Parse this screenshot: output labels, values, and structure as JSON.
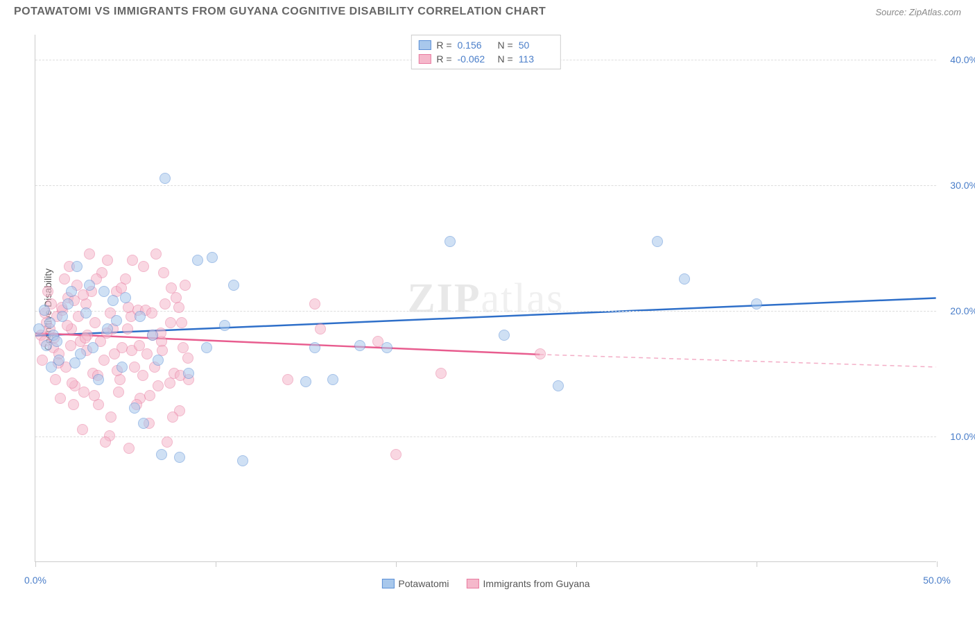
{
  "header": {
    "title": "POTAWATOMI VS IMMIGRANTS FROM GUYANA COGNITIVE DISABILITY CORRELATION CHART",
    "source_prefix": "Source: ",
    "source": "ZipAtlas.com"
  },
  "chart": {
    "type": "scatter",
    "watermark": "ZIPatlas",
    "y_axis_label": "Cognitive Disability",
    "xlim": [
      0,
      50
    ],
    "ylim": [
      0,
      42
    ],
    "x_ticks": [
      0,
      10,
      20,
      30,
      40,
      50
    ],
    "x_tick_labels": {
      "0": "0.0%",
      "50": "50.0%"
    },
    "x_tick_label_color": "#4a7ec9",
    "y_gridlines": [
      10,
      20,
      30,
      40
    ],
    "y_tick_labels": {
      "10": "10.0%",
      "20": "20.0%",
      "30": "30.0%",
      "40": "40.0%"
    },
    "y_tick_label_color": "#4a7ec9",
    "grid_color": "#dddddd",
    "background_color": "#ffffff",
    "point_radius": 8,
    "point_opacity": 0.55,
    "series": [
      {
        "name": "Potawatomi",
        "fill_color": "#a8c8ec",
        "stroke_color": "#5b8fd6",
        "trend_color": "#2e6fc9",
        "r_value": "0.156",
        "n_value": "50",
        "trend": {
          "x1": 0,
          "y1": 18.0,
          "x2": 50,
          "y2": 21.0,
          "dash_after_x": 50
        },
        "points": [
          [
            0.2,
            18.5
          ],
          [
            0.5,
            20.0
          ],
          [
            0.6,
            17.2
          ],
          [
            0.8,
            19.0
          ],
          [
            1.0,
            18.0
          ],
          [
            1.2,
            17.5
          ],
          [
            1.5,
            19.5
          ],
          [
            1.8,
            20.5
          ],
          [
            2.0,
            21.5
          ],
          [
            2.2,
            15.8
          ],
          [
            2.5,
            16.5
          ],
          [
            2.8,
            19.8
          ],
          [
            3.0,
            22.0
          ],
          [
            3.2,
            17.0
          ],
          [
            3.5,
            14.5
          ],
          [
            4.0,
            18.5
          ],
          [
            4.3,
            20.8
          ],
          [
            4.8,
            15.5
          ],
          [
            5.0,
            21.0
          ],
          [
            5.5,
            12.2
          ],
          [
            6.0,
            11.0
          ],
          [
            6.5,
            18.0
          ],
          [
            7.0,
            8.5
          ],
          [
            7.2,
            30.5
          ],
          [
            8.0,
            8.3
          ],
          [
            8.5,
            15.0
          ],
          [
            9.0,
            24.0
          ],
          [
            9.5,
            17.0
          ],
          [
            9.8,
            24.2
          ],
          [
            10.5,
            18.8
          ],
          [
            11.0,
            22.0
          ],
          [
            11.5,
            8.0
          ],
          [
            15.0,
            14.3
          ],
          [
            15.5,
            17.0
          ],
          [
            16.5,
            14.5
          ],
          [
            18.0,
            17.2
          ],
          [
            19.5,
            17.0
          ],
          [
            23.0,
            25.5
          ],
          [
            26.0,
            18.0
          ],
          [
            29.0,
            14.0
          ],
          [
            34.5,
            25.5
          ],
          [
            36.0,
            22.5
          ],
          [
            40.0,
            20.5
          ],
          [
            2.3,
            23.5
          ],
          [
            3.8,
            21.5
          ],
          [
            1.3,
            16.0
          ],
          [
            0.9,
            15.5
          ],
          [
            4.5,
            19.2
          ],
          [
            6.8,
            16.0
          ],
          [
            5.8,
            19.5
          ]
        ]
      },
      {
        "name": "Immigants from Guyana",
        "display_name": "Immigrants from Guyana",
        "fill_color": "#f5b8cb",
        "stroke_color": "#e87ba0",
        "trend_color": "#e85d8f",
        "r_value": "-0.062",
        "n_value": "113",
        "trend": {
          "x1": 0,
          "y1": 18.2,
          "x2": 28,
          "y2": 16.5,
          "dash_after_x": 28,
          "dash_x2": 50,
          "dash_y2": 15.5
        },
        "points": [
          [
            0.3,
            18.0
          ],
          [
            0.5,
            17.5
          ],
          [
            0.6,
            19.0
          ],
          [
            0.8,
            18.5
          ],
          [
            1.0,
            17.0
          ],
          [
            1.2,
            19.5
          ],
          [
            1.3,
            16.5
          ],
          [
            1.5,
            20.0
          ],
          [
            1.7,
            15.5
          ],
          [
            1.8,
            21.0
          ],
          [
            2.0,
            18.5
          ],
          [
            2.2,
            14.0
          ],
          [
            2.3,
            22.0
          ],
          [
            2.5,
            17.5
          ],
          [
            2.7,
            13.5
          ],
          [
            2.8,
            20.5
          ],
          [
            3.0,
            24.5
          ],
          [
            3.2,
            15.0
          ],
          [
            3.3,
            19.0
          ],
          [
            3.5,
            12.5
          ],
          [
            3.7,
            23.0
          ],
          [
            3.8,
            16.0
          ],
          [
            4.0,
            24.0
          ],
          [
            4.2,
            11.5
          ],
          [
            4.3,
            18.5
          ],
          [
            4.5,
            21.5
          ],
          [
            4.7,
            14.5
          ],
          [
            4.8,
            17.0
          ],
          [
            5.0,
            22.5
          ],
          [
            5.2,
            9.0
          ],
          [
            5.3,
            19.5
          ],
          [
            5.5,
            15.5
          ],
          [
            5.7,
            20.0
          ],
          [
            5.8,
            13.0
          ],
          [
            6.0,
            23.5
          ],
          [
            6.2,
            16.5
          ],
          [
            6.3,
            11.0
          ],
          [
            6.5,
            18.0
          ],
          [
            6.7,
            24.5
          ],
          [
            6.8,
            14.0
          ],
          [
            7.0,
            17.5
          ],
          [
            7.2,
            20.5
          ],
          [
            7.3,
            9.5
          ],
          [
            7.5,
            19.0
          ],
          [
            7.7,
            15.0
          ],
          [
            7.8,
            21.0
          ],
          [
            8.0,
            12.0
          ],
          [
            8.2,
            17.0
          ],
          [
            8.3,
            22.0
          ],
          [
            8.5,
            14.5
          ],
          [
            2.6,
            10.5
          ],
          [
            3.1,
            21.5
          ],
          [
            1.9,
            23.5
          ],
          [
            4.1,
            10.0
          ],
          [
            5.4,
            24.0
          ],
          [
            1.1,
            14.5
          ],
          [
            0.9,
            20.5
          ],
          [
            2.1,
            12.5
          ],
          [
            3.6,
            17.5
          ],
          [
            4.6,
            13.5
          ],
          [
            1.6,
            22.5
          ],
          [
            2.9,
            18.0
          ],
          [
            3.9,
            9.5
          ],
          [
            14.0,
            14.5
          ],
          [
            15.5,
            20.5
          ],
          [
            15.8,
            18.5
          ],
          [
            19.0,
            17.5
          ],
          [
            20.0,
            8.5
          ],
          [
            22.5,
            15.0
          ],
          [
            28.0,
            16.5
          ],
          [
            0.4,
            16.0
          ],
          [
            0.7,
            21.5
          ],
          [
            1.4,
            13.0
          ],
          [
            2.4,
            19.5
          ],
          [
            3.4,
            22.5
          ],
          [
            4.4,
            16.5
          ],
          [
            5.1,
            18.5
          ],
          [
            5.6,
            12.5
          ],
          [
            6.1,
            20.0
          ],
          [
            6.6,
            15.5
          ],
          [
            7.1,
            23.0
          ],
          [
            7.6,
            11.5
          ],
          [
            8.1,
            19.0
          ],
          [
            1.05,
            17.8
          ],
          [
            1.75,
            18.8
          ],
          [
            2.15,
            20.8
          ],
          [
            2.85,
            16.8
          ],
          [
            3.45,
            14.8
          ],
          [
            4.15,
            19.8
          ],
          [
            4.75,
            21.8
          ],
          [
            5.35,
            16.8
          ],
          [
            5.95,
            14.8
          ],
          [
            6.45,
            19.8
          ],
          [
            7.05,
            16.8
          ],
          [
            7.55,
            21.8
          ],
          [
            8.05,
            14.8
          ],
          [
            0.55,
            19.8
          ],
          [
            1.25,
            15.8
          ],
          [
            1.95,
            17.2
          ],
          [
            2.65,
            21.2
          ],
          [
            3.25,
            13.2
          ],
          [
            3.95,
            18.2
          ],
          [
            4.55,
            15.2
          ],
          [
            5.15,
            20.2
          ],
          [
            5.75,
            17.2
          ],
          [
            6.35,
            13.2
          ],
          [
            6.95,
            18.2
          ],
          [
            7.45,
            14.2
          ],
          [
            7.95,
            20.2
          ],
          [
            8.45,
            16.2
          ],
          [
            1.45,
            20.2
          ],
          [
            2.05,
            14.2
          ],
          [
            2.75,
            17.8
          ]
        ]
      }
    ],
    "legend_stat_labels": {
      "r": "R =",
      "n": "N ="
    },
    "legend_stat_value_color": "#4a7ec9",
    "legend_text_color": "#555555"
  }
}
